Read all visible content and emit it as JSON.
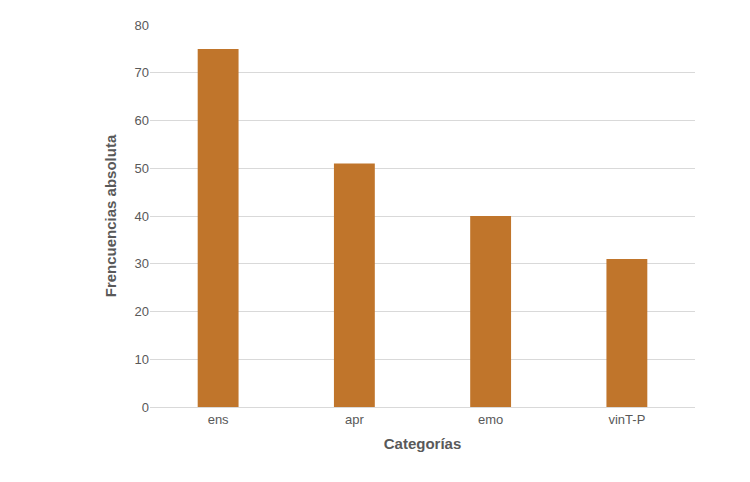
{
  "chart_data": {
    "type": "bar",
    "x_label": "Categorías",
    "y_label": "Frencuencias absoluta",
    "categories": [
      "ens",
      "apr",
      "emo",
      "vinT-P"
    ],
    "values": [
      75,
      51,
      40,
      31
    ],
    "color": "#c0752b",
    "ylim": [
      0,
      80
    ],
    "yticks": [
      0,
      10,
      20,
      30,
      40,
      50,
      60,
      70,
      80
    ],
    "grid": true
  }
}
